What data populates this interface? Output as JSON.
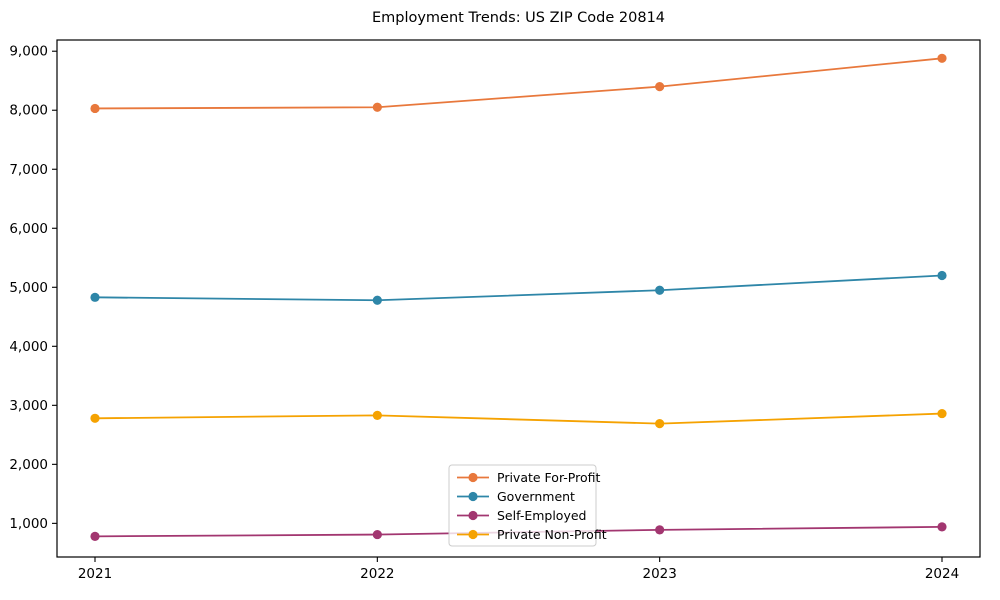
{
  "chart_data": {
    "type": "line",
    "title": "Employment Trends: US ZIP Code 20814",
    "x_categories": [
      "2021",
      "2022",
      "2023",
      "2024"
    ],
    "series": [
      {
        "name": "Private For-Profit",
        "color": "#e8783c",
        "values": [
          8030,
          8050,
          8400,
          8880
        ]
      },
      {
        "name": "Government",
        "color": "#2e86a8",
        "values": [
          4830,
          4780,
          4950,
          5200
        ]
      },
      {
        "name": "Self-Employed",
        "color": "#a23670",
        "values": [
          780,
          810,
          890,
          940
        ]
      },
      {
        "name": "Private Non-Profit",
        "color": "#f5a201",
        "values": [
          2780,
          2830,
          2690,
          2860
        ]
      }
    ],
    "xlabel": "",
    "ylabel": "",
    "ylim": [
      430,
      9190
    ],
    "yticks": [
      {
        "value": 1000,
        "label": "1,000"
      },
      {
        "value": 2000,
        "label": "2,000"
      },
      {
        "value": 3000,
        "label": "3,000"
      },
      {
        "value": 4000,
        "label": "4,000"
      },
      {
        "value": 5000,
        "label": "5,000"
      },
      {
        "value": 6000,
        "label": "6,000"
      },
      {
        "value": 7000,
        "label": "7,000"
      },
      {
        "value": 8000,
        "label": "8,000"
      },
      {
        "value": 9000,
        "label": "9,000"
      }
    ],
    "grid": false,
    "legend_position": "lower-center-inside",
    "frame_color": "#000000",
    "legend_border_color": "#cccccc"
  }
}
